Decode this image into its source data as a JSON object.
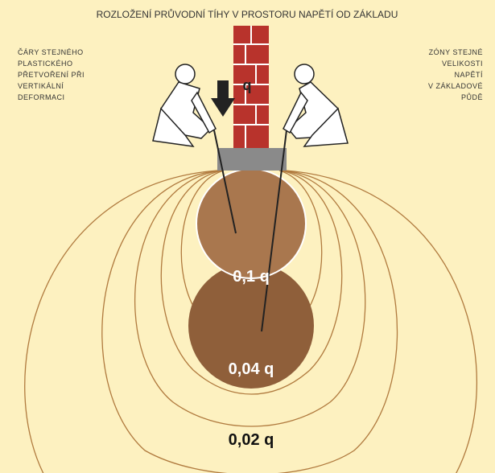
{
  "header": {
    "title": "ROZLOŽENÍ PRŮVODNÍ TÍHY V PROSTORU NAPĚTÍ OD ZÁKLADU"
  },
  "left_note": {
    "lines": [
      "ČÁRY STEJNÉHO",
      "PLASTICKÉHO",
      "PŘETVOŘENÍ PŘI",
      "VERTIKÁLNÍ",
      "DEFORMACI"
    ]
  },
  "right_note": {
    "lines": [
      "ZÓNY STEJNÉ",
      "VELIKOSTI",
      "NAPĚTÍ",
      "V ZÁKLADOVÉ",
      "PŮDĚ"
    ]
  },
  "load": {
    "label": "q"
  },
  "zones": [
    {
      "label": "0,1 q"
    },
    {
      "label": "0,04 q"
    },
    {
      "label": "0,02 q"
    }
  ]
}
